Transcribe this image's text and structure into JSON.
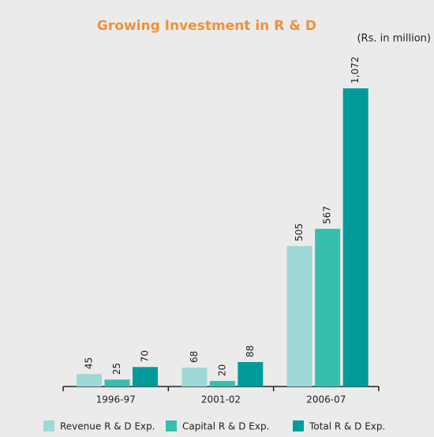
{
  "chart_data": {
    "type": "bar",
    "title": "Growing Investment in R & D",
    "subtitle": "(Rs. in million)",
    "categories": [
      "1996-97",
      "2001-02",
      "2006-07"
    ],
    "series": [
      {
        "name": "Revenue R & D Exp.",
        "color": "#9dd9d6",
        "values": [
          45,
          68,
          505
        ]
      },
      {
        "name": "Capital R & D Exp.",
        "color": "#35bfad",
        "values": [
          25,
          20,
          567
        ]
      },
      {
        "name": "Total R & D Exp.",
        "color": "#009b98",
        "values": [
          70,
          88,
          1072
        ],
        "value_labels": [
          "70",
          "88",
          "1,072"
        ]
      }
    ]
  }
}
